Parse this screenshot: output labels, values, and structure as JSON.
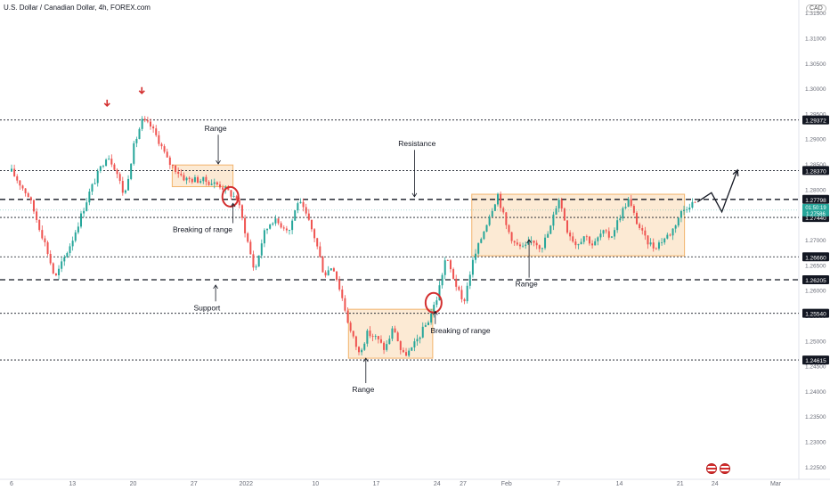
{
  "header": {
    "title": "U.S. Dollar / Canadian Dollar, 4h, FOREX.com",
    "currency": "CAD"
  },
  "colors": {
    "bull": "#26a69a",
    "bear": "#ef5350",
    "zone_fill": "#fbe3c6",
    "zone_stroke": "#f2b36b",
    "marker": "#d32f2f",
    "tag_bg": "#131722",
    "grid": "#f0f3fa"
  },
  "icons": [
    "down-arrow-marker-icon",
    "us-flag-icon",
    "projection-arrow-icon"
  ],
  "chart_data": {
    "type": "candlestick",
    "symbol": "U.S. Dollar / Canadian Dollar",
    "timeframe": "4h",
    "ylim": [
      1.2225,
      1.3175
    ],
    "y_ticks": [
      "1.31500",
      "1.31000",
      "1.30500",
      "1.30000",
      "1.29500",
      "1.29000",
      "1.28500",
      "1.28000",
      "1.27500",
      "1.27000",
      "1.26500",
      "1.26000",
      "1.25500",
      "1.25000",
      "1.24500",
      "1.24000",
      "1.23500",
      "1.23000",
      "1.22500"
    ],
    "x_ticks": [
      {
        "label": "6",
        "x": 0
      },
      {
        "label": "13",
        "x": 7
      },
      {
        "label": "20",
        "x": 14
      },
      {
        "label": "27",
        "x": 21
      },
      {
        "label": "2022",
        "x": 27
      },
      {
        "label": "10",
        "x": 35
      },
      {
        "label": "17",
        "x": 42
      },
      {
        "label": "24",
        "x": 49
      },
      {
        "label": "27",
        "x": 52
      },
      {
        "label": "Feb",
        "x": 57
      },
      {
        "label": "7",
        "x": 63
      },
      {
        "label": "14",
        "x": 70
      },
      {
        "label": "21",
        "x": 77
      },
      {
        "label": "24",
        "x": 81
      },
      {
        "label": "Mar",
        "x": 88
      }
    ],
    "price_path": [
      [
        0,
        1.2835
      ],
      [
        2,
        1.2785
      ],
      [
        4,
        1.2685
      ],
      [
        5,
        1.2622
      ],
      [
        7,
        1.27
      ],
      [
        9,
        1.2795
      ],
      [
        11,
        1.287
      ],
      [
        12,
        1.284
      ],
      [
        13,
        1.2785
      ],
      [
        14,
        1.288
      ],
      [
        15,
        1.2935
      ],
      [
        16,
        1.2925
      ],
      [
        17,
        1.2895
      ],
      [
        18,
        1.2855
      ],
      [
        20,
        1.282
      ],
      [
        22,
        1.2818
      ],
      [
        24,
        1.2808
      ],
      [
        26,
        1.278
      ],
      [
        27,
        1.271
      ],
      [
        28,
        1.2635
      ],
      [
        29,
        1.271
      ],
      [
        30,
        1.274
      ],
      [
        32,
        1.272
      ],
      [
        33,
        1.2778
      ],
      [
        34,
        1.2745
      ],
      [
        35,
        1.27
      ],
      [
        36,
        1.263
      ],
      [
        37,
        1.265
      ],
      [
        38,
        1.259
      ],
      [
        39,
        1.252
      ],
      [
        40,
        1.2475
      ],
      [
        41,
        1.2515
      ],
      [
        42,
        1.2505
      ],
      [
        43,
        1.2482
      ],
      [
        44,
        1.2528
      ],
      [
        45,
        1.247
      ],
      [
        46,
        1.248
      ],
      [
        47,
        1.251
      ],
      [
        48,
        1.254
      ],
      [
        49,
        1.2585
      ],
      [
        50,
        1.2665
      ],
      [
        51,
        1.262
      ],
      [
        52,
        1.257
      ],
      [
        53,
        1.265
      ],
      [
        55,
        1.2748
      ],
      [
        56,
        1.279
      ],
      [
        57,
        1.2725
      ],
      [
        58,
        1.269
      ],
      [
        59,
        1.2682
      ],
      [
        60,
        1.27
      ],
      [
        61,
        1.2685
      ],
      [
        62,
        1.272
      ],
      [
        63,
        1.2785
      ],
      [
        64,
        1.272
      ],
      [
        65,
        1.269
      ],
      [
        66,
        1.271
      ],
      [
        67,
        1.2688
      ],
      [
        68,
        1.2715
      ],
      [
        69,
        1.2705
      ],
      [
        70,
        1.2745
      ],
      [
        71,
        1.278
      ],
      [
        72,
        1.2735
      ],
      [
        73,
        1.27
      ],
      [
        74,
        1.2685
      ],
      [
        75,
        1.27
      ],
      [
        76,
        1.2715
      ],
      [
        77,
        1.2752
      ],
      [
        78,
        1.277
      ],
      [
        79,
        1.2775
      ]
    ],
    "levels": [
      {
        "value": 1.29372,
        "label": "1.29372",
        "style": "dotted"
      },
      {
        "value": 1.2837,
        "label": "1.28370",
        "style": "dotted"
      },
      {
        "value": 1.27798,
        "label": "1.27798",
        "style": "dashed"
      },
      {
        "value": 1.2744,
        "label": "1.27440",
        "style": "dotted"
      },
      {
        "value": 1.2666,
        "label": "1.26660",
        "style": "dotted"
      },
      {
        "value": 1.26205,
        "label": "1.26205",
        "style": "dashed"
      },
      {
        "value": 1.2554,
        "label": "1.25540",
        "style": "dotted"
      },
      {
        "value": 1.24615,
        "label": "1.24615",
        "style": "dotted"
      }
    ],
    "current_price": {
      "value": 1.27586,
      "label": "1.27586",
      "countdown": "01:50:19"
    },
    "range_zones": [
      {
        "x0": 18.5,
        "x1": 25.5,
        "y0": 1.2805,
        "y1": 1.2848
      },
      {
        "x0": 38.8,
        "x1": 48.5,
        "y0": 1.2465,
        "y1": 1.2562
      },
      {
        "x0": 53.0,
        "x1": 77.5,
        "y0": 1.2668,
        "y1": 1.279
      }
    ],
    "breakout_circles": [
      {
        "x": 25.2,
        "y": 1.2785
      },
      {
        "x": 48.6,
        "y": 1.2575
      }
    ],
    "down_markers": [
      {
        "x": 11,
        "y": 1.2965
      },
      {
        "x": 15,
        "y": 1.299
      }
    ],
    "annotations": [
      {
        "text": "Range",
        "x": 23.5,
        "y": 1.2915,
        "pointer": [
          23.8,
          1.285
        ]
      },
      {
        "text": "Breaking of range",
        "x": 22.0,
        "y": 1.2715,
        "pointer": [
          25.5,
          1.2772
        ]
      },
      {
        "text": "Resistance",
        "x": 46.7,
        "y": 1.2885,
        "pointer": [
          46.4,
          1.2785
        ]
      },
      {
        "text": "Support",
        "x": 22.5,
        "y": 1.256,
        "pointer": [
          23.5,
          1.261
        ]
      },
      {
        "text": "Breaking of range",
        "x": 51.7,
        "y": 1.2515,
        "pointer": [
          48.8,
          1.2558
        ]
      },
      {
        "text": "Range",
        "x": 40.5,
        "y": 1.2398,
        "pointer": [
          40.8,
          1.2465
        ]
      },
      {
        "text": "Range",
        "x": 59.3,
        "y": 1.2607,
        "pointer": [
          59.6,
          1.27
        ]
      }
    ],
    "projection": [
      [
        79,
        1.2775
      ],
      [
        80.6,
        1.2793
      ],
      [
        81.8,
        1.2755
      ],
      [
        83.6,
        1.2838
      ]
    ],
    "grid": false,
    "legend": "none"
  }
}
